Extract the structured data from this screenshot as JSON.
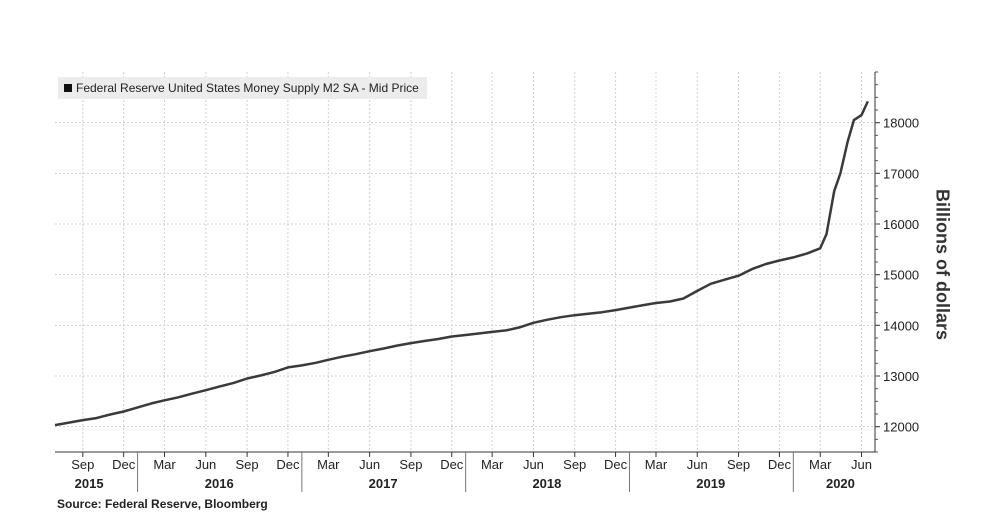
{
  "chart_data": {
    "type": "line",
    "title": "",
    "legend": {
      "placement": "top-left",
      "entries": [
        "Federal Reserve United States Money Supply M2 SA - Mid Price"
      ]
    },
    "ylabel": "Billions of dollars",
    "ylim": [
      11500,
      19000
    ],
    "yticks": [
      12000,
      13000,
      14000,
      15000,
      16000,
      17000,
      18000
    ],
    "ytick_labels": [
      "12000",
      "13000",
      "14000",
      "15000",
      "16000",
      "17000",
      "18000"
    ],
    "grid": true,
    "line_color": "#3a3a3a",
    "xlim": [
      "2015-07-01",
      "2020-07-01"
    ],
    "month_ticks": [
      {
        "label": "Sep",
        "date": "2015-09-01"
      },
      {
        "label": "Dec",
        "date": "2015-12-01"
      },
      {
        "label": "Mar",
        "date": "2016-03-01"
      },
      {
        "label": "Jun",
        "date": "2016-06-01"
      },
      {
        "label": "Sep",
        "date": "2016-09-01"
      },
      {
        "label": "Dec",
        "date": "2016-12-01"
      },
      {
        "label": "Mar",
        "date": "2017-03-01"
      },
      {
        "label": "Jun",
        "date": "2017-06-01"
      },
      {
        "label": "Sep",
        "date": "2017-09-01"
      },
      {
        "label": "Dec",
        "date": "2017-12-01"
      },
      {
        "label": "Mar",
        "date": "2018-03-01"
      },
      {
        "label": "Jun",
        "date": "2018-06-01"
      },
      {
        "label": "Sep",
        "date": "2018-09-01"
      },
      {
        "label": "Dec",
        "date": "2018-12-01"
      },
      {
        "label": "Mar",
        "date": "2019-03-01"
      },
      {
        "label": "Jun",
        "date": "2019-06-01"
      },
      {
        "label": "Sep",
        "date": "2019-09-01"
      },
      {
        "label": "Dec",
        "date": "2019-12-01"
      },
      {
        "label": "Mar",
        "date": "2020-03-01"
      },
      {
        "label": "Jun",
        "date": "2020-06-01"
      }
    ],
    "years": [
      {
        "label": "2015",
        "date": "2015-09-15"
      },
      {
        "label": "2016",
        "date": "2016-07-01"
      },
      {
        "label": "2017",
        "date": "2017-07-01"
      },
      {
        "label": "2018",
        "date": "2018-07-01"
      },
      {
        "label": "2019",
        "date": "2019-07-01"
      },
      {
        "label": "2020",
        "date": "2020-04-15"
      }
    ],
    "year_separators": [
      "2016-01-01",
      "2017-01-01",
      "2018-01-01",
      "2019-01-01",
      "2020-01-01"
    ],
    "series": [
      {
        "x": [
          "2015-07-01",
          "2015-08-01",
          "2015-09-01",
          "2015-10-01",
          "2015-11-01",
          "2015-12-01",
          "2016-01-01",
          "2016-02-01",
          "2016-03-01",
          "2016-04-01",
          "2016-05-01",
          "2016-06-01",
          "2016-07-01",
          "2016-08-01",
          "2016-09-01",
          "2016-10-01",
          "2016-11-01",
          "2016-12-01",
          "2017-01-01",
          "2017-02-01",
          "2017-03-01",
          "2017-04-01",
          "2017-05-01",
          "2017-06-01",
          "2017-07-01",
          "2017-08-01",
          "2017-09-01",
          "2017-10-01",
          "2017-11-01",
          "2017-12-01",
          "2018-01-01",
          "2018-02-01",
          "2018-03-01",
          "2018-04-01",
          "2018-05-01",
          "2018-06-01",
          "2018-07-01",
          "2018-08-01",
          "2018-09-01",
          "2018-10-01",
          "2018-11-01",
          "2018-12-01",
          "2019-01-01",
          "2019-02-01",
          "2019-03-01",
          "2019-04-01",
          "2019-05-01",
          "2019-06-01",
          "2019-07-01",
          "2019-08-01",
          "2019-09-01",
          "2019-10-01",
          "2019-11-01",
          "2019-12-01",
          "2020-01-01",
          "2020-02-01",
          "2020-03-01",
          "2020-03-15",
          "2020-04-01",
          "2020-04-15",
          "2020-05-01",
          "2020-05-15",
          "2020-06-01",
          "2020-06-15"
        ],
        "values": [
          12030,
          12080,
          12130,
          12170,
          12240,
          12300,
          12380,
          12460,
          12520,
          12580,
          12650,
          12720,
          12790,
          12860,
          12950,
          13010,
          13080,
          13170,
          13210,
          13260,
          13320,
          13380,
          13430,
          13490,
          13540,
          13600,
          13650,
          13690,
          13730,
          13780,
          13810,
          13840,
          13870,
          13900,
          13960,
          14050,
          14110,
          14160,
          14200,
          14230,
          14260,
          14300,
          14350,
          14400,
          14440,
          14470,
          14530,
          14680,
          14820,
          14900,
          14980,
          15110,
          15210,
          15280,
          15340,
          15420,
          15520,
          15800,
          16650,
          17000,
          17620,
          18050,
          18150,
          18420
        ]
      }
    ]
  },
  "source": "Source: Federal Reserve, Bloomberg"
}
